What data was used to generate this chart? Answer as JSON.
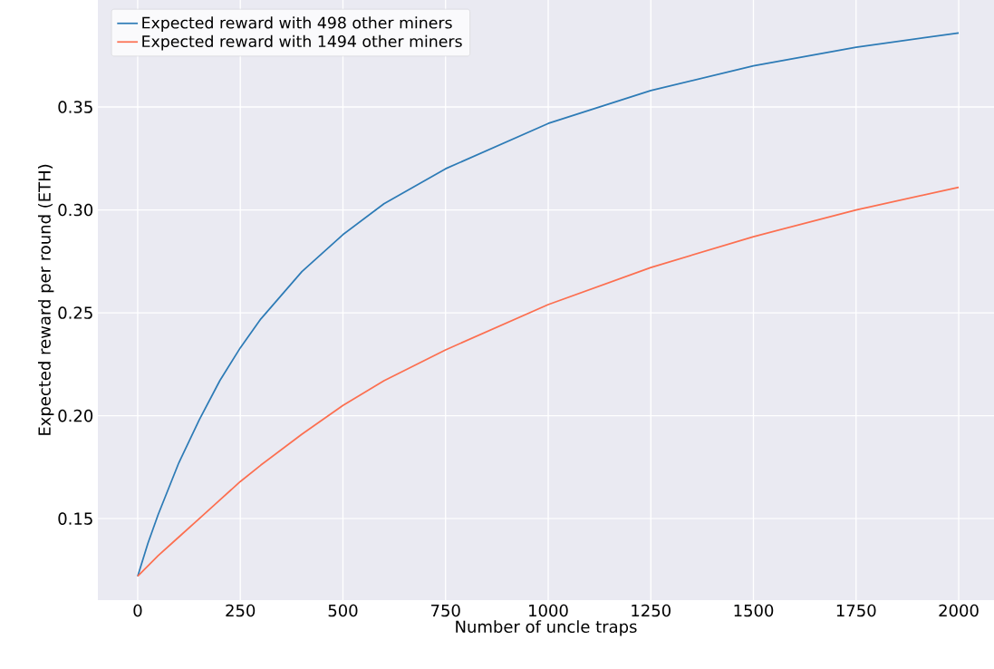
{
  "chart_data": {
    "type": "line",
    "xlabel": "Number of uncle traps",
    "ylabel": "Expected reward per round (ETH)",
    "xlim": [
      -97,
      2086
    ],
    "ylim": [
      0.1104,
      0.402
    ],
    "xticks": [
      0,
      250,
      500,
      750,
      1000,
      1250,
      1500,
      1750,
      2000
    ],
    "yticks": [
      0.15,
      {
        "value": 0.2,
        "label": "0.20"
      },
      0.25,
      {
        "value": 0.3,
        "label": "0.30"
      },
      0.35
    ],
    "grid": true,
    "legend": "top left",
    "series": [
      {
        "name": "Expected reward with 498 other miners",
        "color": "#2d7bb6",
        "x": [
          0,
          25,
          50,
          100,
          150,
          200,
          250,
          300,
          400,
          500,
          600,
          750,
          1000,
          1250,
          1500,
          1750,
          2000
        ],
        "values": [
          0.122,
          0.138,
          0.152,
          0.177,
          0.198,
          0.217,
          0.233,
          0.247,
          0.27,
          0.288,
          0.303,
          0.32,
          0.342,
          0.358,
          0.37,
          0.379,
          0.386
        ]
      },
      {
        "name": "Expected reward with 1494 other miners",
        "color": "#fc6f50",
        "x": [
          0,
          50,
          100,
          150,
          200,
          250,
          300,
          400,
          500,
          600,
          750,
          1000,
          1250,
          1500,
          1750,
          2000
        ],
        "values": [
          0.122,
          0.132,
          0.141,
          0.15,
          0.159,
          0.168,
          0.176,
          0.191,
          0.205,
          0.217,
          0.232,
          0.254,
          0.272,
          0.287,
          0.3,
          0.311
        ]
      }
    ]
  }
}
